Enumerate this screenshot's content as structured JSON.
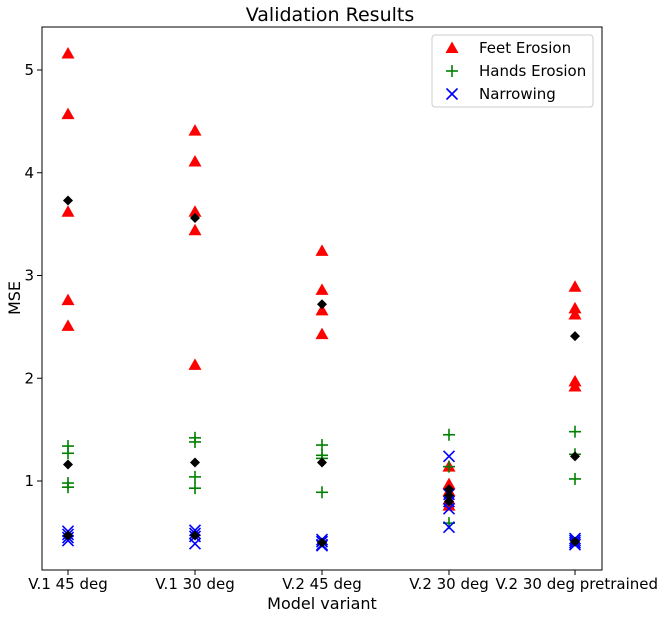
{
  "chart_data": {
    "type": "scatter",
    "title": "Validation Results",
    "xlabel": "Model variant",
    "ylabel": "MSE",
    "categories": [
      "V.1 45 deg",
      "V.1 30 deg",
      "V.2 45 deg",
      "V.2 30 deg",
      "V.2 30 deg pretrained"
    ],
    "yticks": [
      1,
      2,
      3,
      4,
      5
    ],
    "ylim": [
      0.12,
      5.4
    ],
    "legend_position": "top-right",
    "grid": false,
    "series": [
      {
        "name": "Feet Erosion",
        "marker": "triangle",
        "color": "#ff0000",
        "points": [
          {
            "x": "V.1 45 deg",
            "y": [
              5.16,
              4.57,
              3.62,
              2.76,
              2.51
            ]
          },
          {
            "x": "V.1 30 deg",
            "y": [
              4.41,
              4.11,
              3.62,
              3.44,
              2.13
            ]
          },
          {
            "x": "V.2 45 deg",
            "y": [
              3.24,
              2.86,
              2.66,
              2.43
            ]
          },
          {
            "x": "V.2 30 deg",
            "y": [
              1.14,
              0.97,
              0.9,
              0.82,
              0.76
            ]
          },
          {
            "x": "V.2 30 deg pretrained",
            "y": [
              2.89,
              2.68,
              2.62,
              1.97,
              1.92
            ]
          }
        ]
      },
      {
        "name": "Hands Erosion",
        "marker": "plus",
        "color": "#008000",
        "points": [
          {
            "x": "V.1 45 deg",
            "y": [
              1.34,
              1.27,
              0.98,
              0.94
            ]
          },
          {
            "x": "V.1 30 deg",
            "y": [
              1.42,
              1.38,
              1.04,
              0.93
            ]
          },
          {
            "x": "V.2 45 deg",
            "y": [
              1.35,
              1.25,
              1.22,
              0.89
            ]
          },
          {
            "x": "V.2 30 deg",
            "y": [
              1.45,
              1.14,
              0.59
            ]
          },
          {
            "x": "V.2 30 deg pretrained",
            "y": [
              1.48,
              1.26,
              1.02
            ]
          }
        ]
      },
      {
        "name": "Narrowing",
        "marker": "x",
        "color": "#0000ff",
        "points": [
          {
            "x": "V.1 45 deg",
            "y": [
              0.51,
              0.48,
              0.45,
              0.42
            ]
          },
          {
            "x": "V.1 30 deg",
            "y": [
              0.52,
              0.49,
              0.46,
              0.39
            ]
          },
          {
            "x": "V.2 45 deg",
            "y": [
              0.43,
              0.41,
              0.38,
              0.37
            ]
          },
          {
            "x": "V.2 30 deg",
            "y": [
              1.24,
              0.87,
              0.8,
              0.73,
              0.55
            ]
          },
          {
            "x": "V.2 30 deg pretrained",
            "y": [
              0.44,
              0.42,
              0.4,
              0.38
            ]
          }
        ]
      },
      {
        "name": "",
        "marker": "diamond",
        "color": "#000000",
        "points": [
          {
            "x": "V.1 45 deg",
            "y": [
              3.73,
              1.16,
              0.47
            ]
          },
          {
            "x": "V.1 30 deg",
            "y": [
              3.56,
              1.18,
              0.47
            ]
          },
          {
            "x": "V.2 45 deg",
            "y": [
              2.72,
              1.18,
              0.4
            ]
          },
          {
            "x": "V.2 30 deg",
            "y": [
              0.92,
              0.86,
              0.8
            ]
          },
          {
            "x": "V.2 30 deg pretrained",
            "y": [
              2.41,
              1.24,
              0.41
            ]
          }
        ]
      }
    ]
  }
}
